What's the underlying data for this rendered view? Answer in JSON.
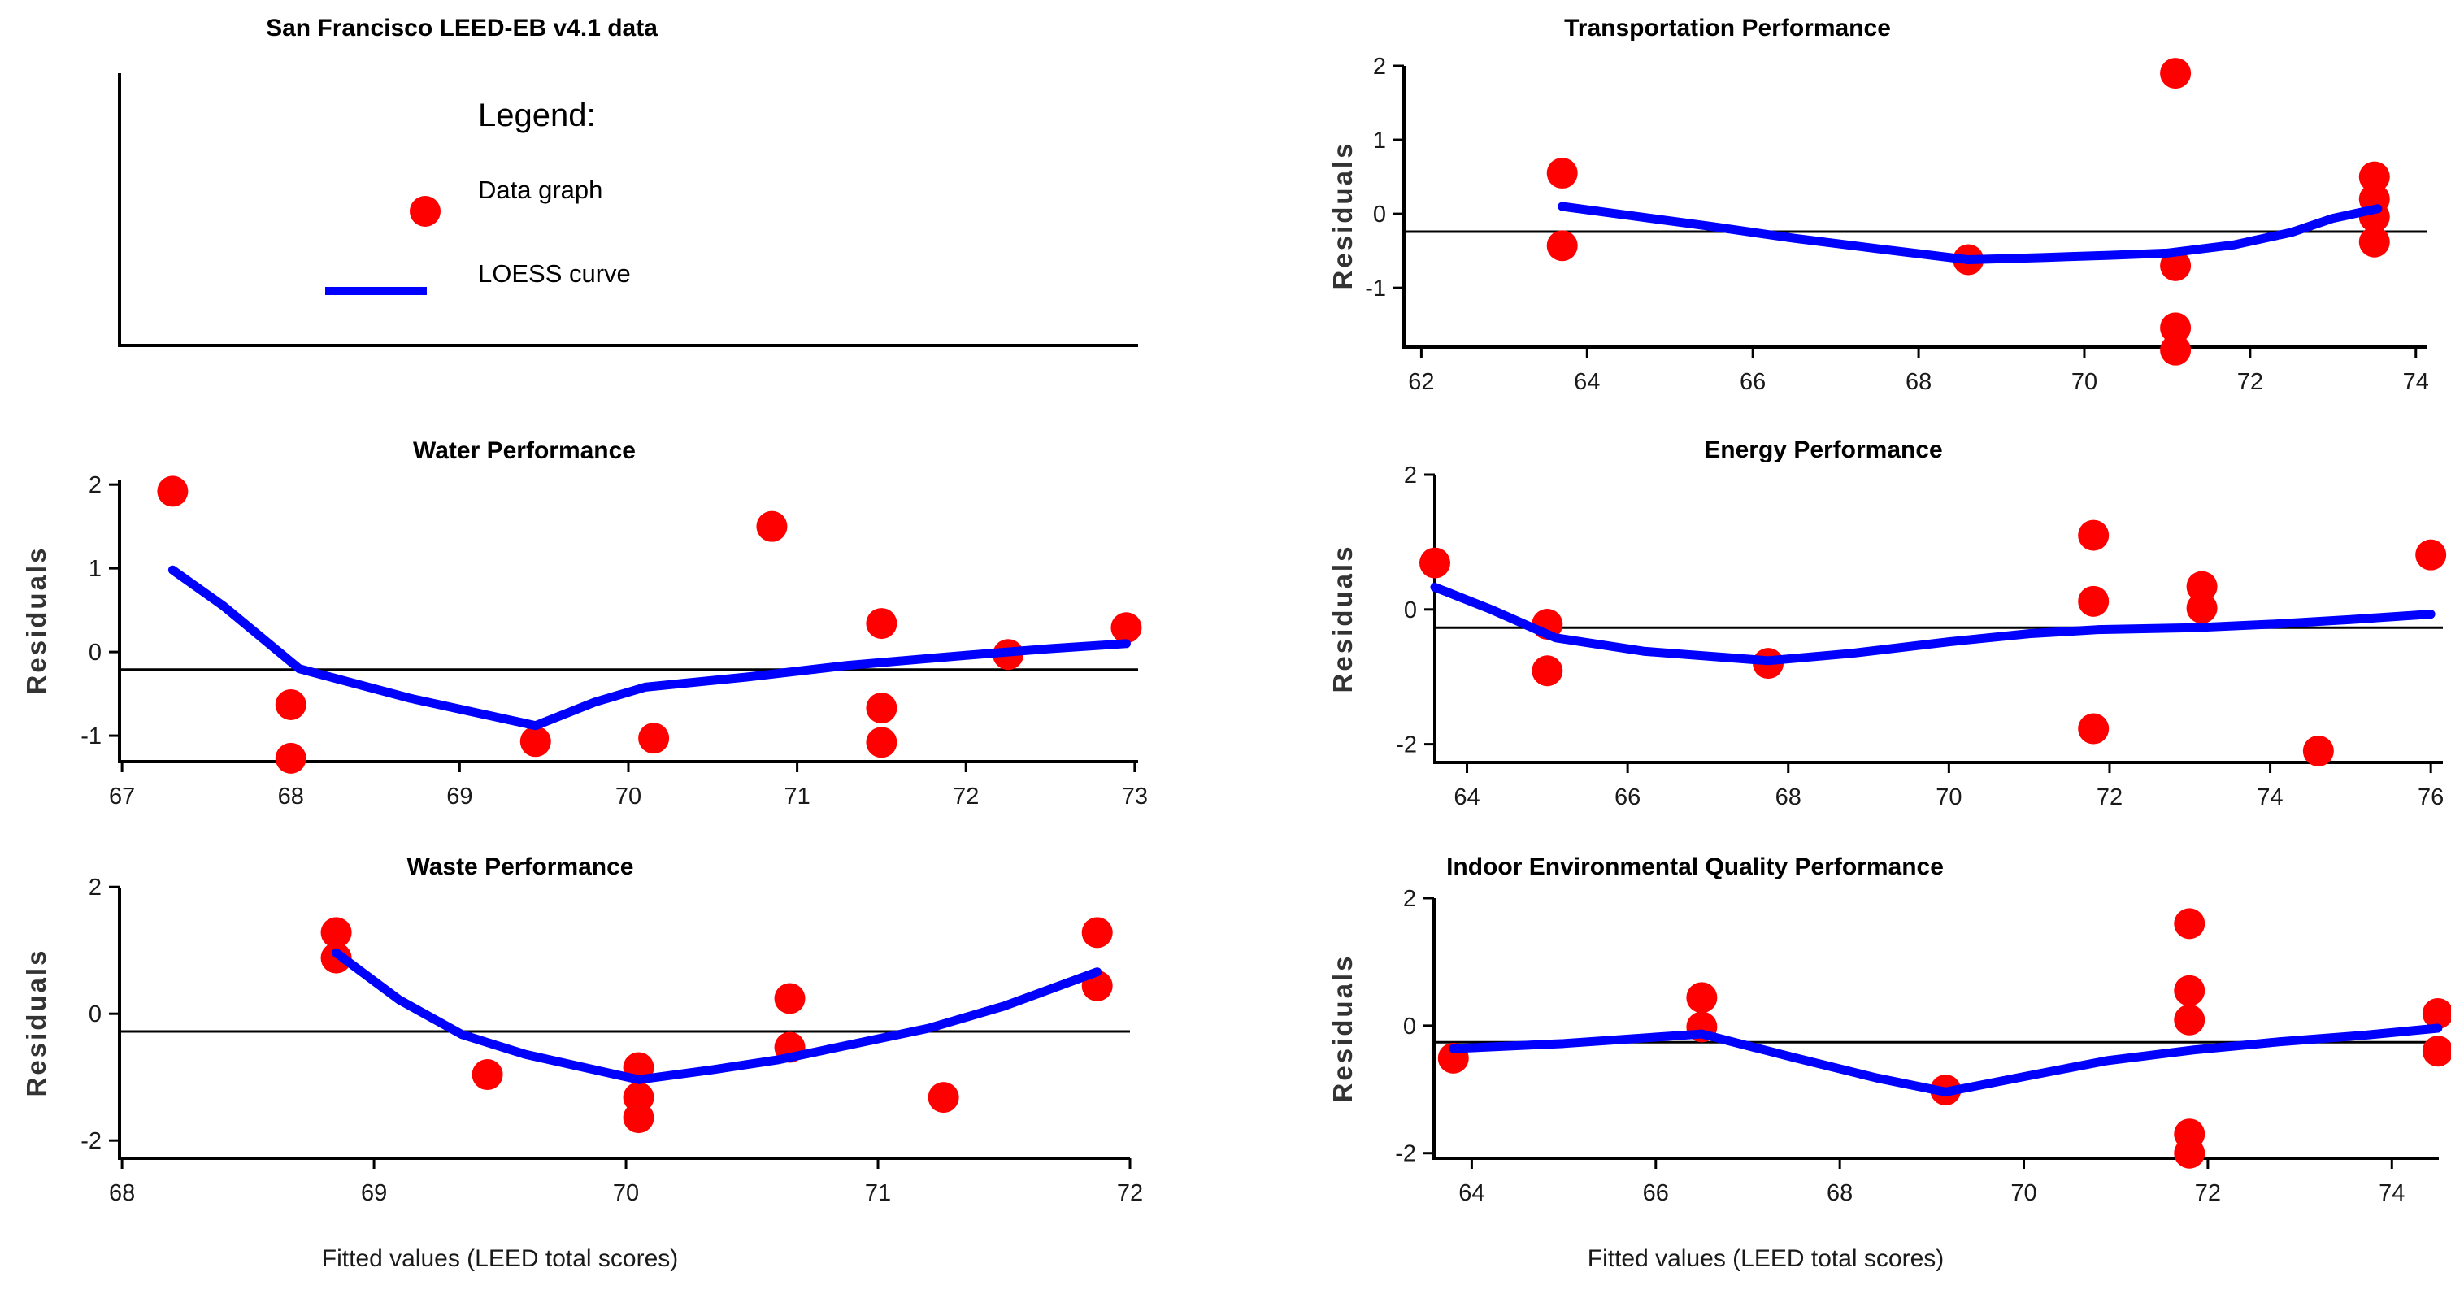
{
  "colors": {
    "data_point": "#ff0000",
    "loess": "#0000ff",
    "axis": "#000000",
    "refline": "#000000",
    "tick_text": "#1a1a1a"
  },
  "legend_panel": {
    "title": "San Francisco LEED-EB v4.1 data",
    "legend_title": "Legend:",
    "items": [
      {
        "label": "Data graph",
        "marker": "red-dot-icon"
      },
      {
        "label": "LOESS curve",
        "marker": "blue-line-icon"
      }
    ]
  },
  "shared": {
    "xlabel": "Fitted values (LEED total scores)",
    "ylabel": "Residuals"
  },
  "chart_data": [
    {
      "type": "scatter",
      "panel": "transportation",
      "title": "Transportation Performance",
      "ylabel": "Residuals",
      "xlim": [
        61.79,
        74.13
      ],
      "ylim": [
        -1.8,
        2.0
      ],
      "xticks": [
        62,
        64,
        66,
        68,
        70,
        72,
        74
      ],
      "yticks": [
        -1,
        0,
        1,
        2
      ],
      "refline": -0.24,
      "grid": false,
      "points": [
        [
          63.7,
          0.55
        ],
        [
          63.7,
          -0.43
        ],
        [
          68.6,
          -0.62
        ],
        [
          71.1,
          1.9
        ],
        [
          71.1,
          -0.7
        ],
        [
          71.1,
          -1.54
        ],
        [
          71.1,
          -1.84
        ],
        [
          73.5,
          0.5
        ],
        [
          73.5,
          0.2
        ],
        [
          73.5,
          -0.04
        ],
        [
          73.5,
          -0.38
        ]
      ],
      "loess": [
        [
          63.7,
          0.1
        ],
        [
          64.5,
          -0.02
        ],
        [
          65.5,
          -0.17
        ],
        [
          66.5,
          -0.33
        ],
        [
          67.5,
          -0.47
        ],
        [
          68.6,
          -0.62
        ],
        [
          69.5,
          -0.59
        ],
        [
          70.3,
          -0.56
        ],
        [
          71.0,
          -0.53
        ],
        [
          71.8,
          -0.42
        ],
        [
          72.5,
          -0.25
        ],
        [
          73.0,
          -0.06
        ],
        [
          73.54,
          0.07
        ]
      ]
    },
    {
      "type": "scatter",
      "panel": "water",
      "title": "Water Performance",
      "ylabel": "Residuals",
      "xlim": [
        66.985,
        73.02
      ],
      "ylim": [
        -1.31,
        2.06
      ],
      "xticks": [
        67,
        68,
        69,
        70,
        71,
        72,
        73
      ],
      "yticks": [
        -1,
        0,
        1,
        2
      ],
      "refline": -0.21,
      "grid": false,
      "points": [
        [
          67.3,
          1.92
        ],
        [
          68.0,
          -0.63
        ],
        [
          68.0,
          -1.27
        ],
        [
          69.45,
          -1.07
        ],
        [
          70.15,
          -1.03
        ],
        [
          70.85,
          1.5
        ],
        [
          71.5,
          0.34
        ],
        [
          71.5,
          -0.67
        ],
        [
          71.5,
          -1.08
        ],
        [
          72.25,
          -0.03
        ],
        [
          72.95,
          0.29
        ]
      ],
      "loess": [
        [
          67.3,
          0.98
        ],
        [
          67.6,
          0.55
        ],
        [
          68.05,
          -0.2
        ],
        [
          68.7,
          -0.55
        ],
        [
          69.45,
          -0.88
        ],
        [
          69.8,
          -0.6
        ],
        [
          70.1,
          -0.42
        ],
        [
          70.7,
          -0.3
        ],
        [
          71.3,
          -0.16
        ],
        [
          72.0,
          -0.04
        ],
        [
          72.5,
          0.04
        ],
        [
          72.95,
          0.1
        ]
      ]
    },
    {
      "type": "scatter",
      "panel": "energy",
      "title": "Energy Performance",
      "ylabel": "Residuals",
      "xlim": [
        63.6,
        76.15
      ],
      "ylim": [
        -2.27,
        2.0
      ],
      "xticks": [
        64,
        66,
        68,
        70,
        72,
        74,
        76
      ],
      "yticks": [
        -2,
        0,
        2
      ],
      "refline": -0.27,
      "grid": false,
      "points": [
        [
          63.6,
          0.69
        ],
        [
          65.0,
          -0.22
        ],
        [
          65.0,
          -0.91
        ],
        [
          67.75,
          -0.8
        ],
        [
          71.8,
          1.1
        ],
        [
          71.8,
          0.12
        ],
        [
          71.8,
          -1.77
        ],
        [
          73.15,
          0.34
        ],
        [
          73.15,
          0.02
        ],
        [
          74.6,
          -2.1
        ],
        [
          76.0,
          0.81
        ]
      ],
      "loess": [
        [
          63.6,
          0.33
        ],
        [
          64.3,
          0.0
        ],
        [
          65.1,
          -0.42
        ],
        [
          66.2,
          -0.62
        ],
        [
          67.75,
          -0.76
        ],
        [
          68.8,
          -0.65
        ],
        [
          70.0,
          -0.48
        ],
        [
          71.0,
          -0.36
        ],
        [
          71.85,
          -0.3
        ],
        [
          73.07,
          -0.27
        ],
        [
          74.0,
          -0.22
        ],
        [
          75.0,
          -0.15
        ],
        [
          76.0,
          -0.07
        ]
      ]
    },
    {
      "type": "scatter",
      "panel": "waste",
      "title": "Waste Performance",
      "ylabel": "Residuals",
      "xlim": [
        67.99,
        72.0
      ],
      "ylim": [
        -2.28,
        1.99
      ],
      "xticks": [
        68,
        69,
        70,
        71,
        72
      ],
      "yticks": [
        -2,
        0,
        2
      ],
      "refline": -0.28,
      "grid": false,
      "points": [
        [
          68.85,
          1.28
        ],
        [
          68.85,
          0.88
        ],
        [
          69.45,
          -0.96
        ],
        [
          70.05,
          -0.85
        ],
        [
          70.05,
          -1.32
        ],
        [
          70.05,
          -1.64
        ],
        [
          70.65,
          0.24
        ],
        [
          70.65,
          -0.53
        ],
        [
          71.26,
          -1.32
        ],
        [
          71.87,
          1.28
        ],
        [
          71.87,
          0.44
        ]
      ],
      "loess": [
        [
          68.85,
          0.96
        ],
        [
          69.1,
          0.22
        ],
        [
          69.35,
          -0.33
        ],
        [
          69.6,
          -0.64
        ],
        [
          70.05,
          -1.04
        ],
        [
          70.35,
          -0.88
        ],
        [
          70.6,
          -0.73
        ],
        [
          70.9,
          -0.48
        ],
        [
          71.2,
          -0.23
        ],
        [
          71.5,
          0.12
        ],
        [
          71.87,
          0.66
        ]
      ]
    },
    {
      "type": "scatter",
      "panel": "ieq",
      "title": "Indoor Environmental Quality Performance",
      "ylabel": "Residuals",
      "xlim": [
        63.59,
        74.51
      ],
      "ylim": [
        -2.08,
        2.0
      ],
      "xticks": [
        64,
        66,
        68,
        70,
        72,
        74
      ],
      "yticks": [
        -2,
        0,
        2
      ],
      "refline": -0.26,
      "grid": false,
      "points": [
        [
          63.8,
          -0.51
        ],
        [
          66.5,
          0.44
        ],
        [
          66.5,
          -0.02
        ],
        [
          69.15,
          -1.01
        ],
        [
          71.8,
          1.6
        ],
        [
          71.8,
          0.55
        ],
        [
          71.8,
          0.09
        ],
        [
          71.8,
          -1.7
        ],
        [
          71.8,
          -2.0
        ],
        [
          74.5,
          0.19
        ],
        [
          74.5,
          -0.4
        ]
      ],
      "loess": [
        [
          63.8,
          -0.36
        ],
        [
          65.0,
          -0.28
        ],
        [
          66.5,
          -0.13
        ],
        [
          67.5,
          -0.5
        ],
        [
          68.4,
          -0.82
        ],
        [
          69.15,
          -1.04
        ],
        [
          70.0,
          -0.8
        ],
        [
          70.9,
          -0.55
        ],
        [
          71.85,
          -0.38
        ],
        [
          72.8,
          -0.25
        ],
        [
          73.7,
          -0.15
        ],
        [
          74.5,
          -0.04
        ]
      ]
    }
  ]
}
